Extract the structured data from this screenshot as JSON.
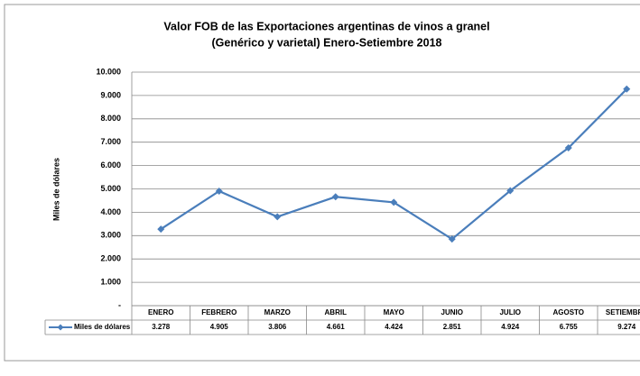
{
  "chart_data": {
    "type": "line",
    "title": [
      "Valor FOB de las Exportaciones argentinas de vinos a granel",
      "(Genérico y varietal) Enero-Setiembre 2018"
    ],
    "y_label": "Miles de dólares",
    "categories": [
      "ENERO",
      "FEBRERO",
      "MARZO",
      "ABRIL",
      "MAYO",
      "JUNIO",
      "JULIO",
      "AGOSTO",
      "SETIEMBRE"
    ],
    "series": [
      {
        "name": "Miles de dólares",
        "color": "#4a7ebb",
        "values": [
          3278,
          4905,
          3806,
          4661,
          4424,
          2851,
          4924,
          6755,
          9274
        ],
        "value_labels": [
          "3.278",
          "4.905",
          "3.806",
          "4.661",
          "4.424",
          "2.851",
          "4.924",
          "6.755",
          "9.274"
        ]
      }
    ],
    "ylim": [
      0,
      10000
    ],
    "yticks": [
      {
        "value": 0,
        "label": "-"
      },
      {
        "value": 1000,
        "label": "1.000"
      },
      {
        "value": 2000,
        "label": "2.000"
      },
      {
        "value": 3000,
        "label": "3.000"
      },
      {
        "value": 4000,
        "label": "4.000"
      },
      {
        "value": 5000,
        "label": "5.000"
      },
      {
        "value": 6000,
        "label": "6.000"
      },
      {
        "value": 7000,
        "label": "7.000"
      },
      {
        "value": 8000,
        "label": "8.000"
      },
      {
        "value": 9000,
        "label": "9.000"
      },
      {
        "value": 10000,
        "label": "10.000"
      }
    ],
    "grid": true
  }
}
